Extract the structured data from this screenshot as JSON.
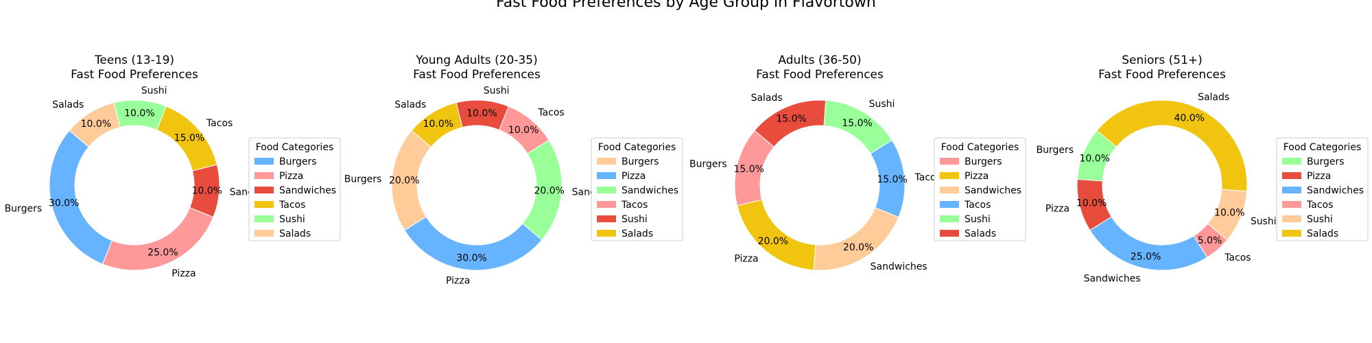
{
  "figure": {
    "title": "Fast Food Preferences by Age Group in Flavortown"
  },
  "colors": {
    "blue": "#66b3ff",
    "pink": "#ff9999",
    "red": "#e74c3c",
    "yellow": "#f1c40f",
    "green": "#99ff99",
    "peach": "#ffcc99"
  },
  "chart_data": [
    {
      "type": "pie",
      "variant": "donut",
      "title": "Teens (13-19)",
      "subtitle": "Fast Food Preferences",
      "legend_title": "Food Categories",
      "legend_position": "right",
      "start_angle_deg": 140,
      "slices": [
        {
          "label": "Burgers",
          "value": 30,
          "pct_label": "30.0%",
          "color": "#66b3ff"
        },
        {
          "label": "Pizza",
          "value": 25,
          "pct_label": "25.0%",
          "color": "#ff9999"
        },
        {
          "label": "Sandwiches",
          "value": 10,
          "pct_label": "10.0%",
          "color": "#e74c3c"
        },
        {
          "label": "Tacos",
          "value": 15,
          "pct_label": "15.0%",
          "color": "#f1c40f"
        },
        {
          "label": "Sushi",
          "value": 10,
          "pct_label": "10.0%",
          "color": "#99ff99"
        },
        {
          "label": "Salads",
          "value": 10,
          "pct_label": "10.0%",
          "color": "#ffcc99"
        }
      ]
    },
    {
      "type": "pie",
      "variant": "donut",
      "title": "Young Adults (20-35)",
      "subtitle": "Fast Food Preferences",
      "legend_title": "Food Categories",
      "legend_position": "right",
      "start_angle_deg": 140,
      "slices": [
        {
          "label": "Burgers",
          "value": 20,
          "pct_label": "20.0%",
          "color": "#ffcc99"
        },
        {
          "label": "Pizza",
          "value": 30,
          "pct_label": "30.0%",
          "color": "#66b3ff"
        },
        {
          "label": "Sandwiches",
          "value": 20,
          "pct_label": "20.0%",
          "color": "#99ff99"
        },
        {
          "label": "Tacos",
          "value": 10,
          "pct_label": "10.0%",
          "color": "#ff9999"
        },
        {
          "label": "Sushi",
          "value": 10,
          "pct_label": "10.0%",
          "color": "#e74c3c"
        },
        {
          "label": "Salads",
          "value": 10,
          "pct_label": "10.0%",
          "color": "#f1c40f"
        }
      ]
    },
    {
      "type": "pie",
      "variant": "donut",
      "title": "Adults (36-50)",
      "subtitle": "Fast Food Preferences",
      "legend_title": "Food Categories",
      "legend_position": "right",
      "start_angle_deg": 140,
      "slices": [
        {
          "label": "Burgers",
          "value": 15,
          "pct_label": "15.0%",
          "color": "#ff9999"
        },
        {
          "label": "Pizza",
          "value": 20,
          "pct_label": "20.0%",
          "color": "#f1c40f"
        },
        {
          "label": "Sandwiches",
          "value": 20,
          "pct_label": "20.0%",
          "color": "#ffcc99"
        },
        {
          "label": "Tacos",
          "value": 15,
          "pct_label": "15.0%",
          "color": "#66b3ff"
        },
        {
          "label": "Sushi",
          "value": 15,
          "pct_label": "15.0%",
          "color": "#99ff99"
        },
        {
          "label": "Salads",
          "value": 15,
          "pct_label": "15.0%",
          "color": "#e74c3c"
        }
      ]
    },
    {
      "type": "pie",
      "variant": "donut",
      "title": "Seniors (51+)",
      "subtitle": "Fast Food Preferences",
      "legend_title": "Food Categories",
      "legend_position": "right",
      "start_angle_deg": 140,
      "slices": [
        {
          "label": "Burgers",
          "value": 10,
          "pct_label": "10.0%",
          "color": "#99ff99"
        },
        {
          "label": "Pizza",
          "value": 10,
          "pct_label": "10.0%",
          "color": "#e74c3c"
        },
        {
          "label": "Sandwiches",
          "value": 25,
          "pct_label": "25.0%",
          "color": "#66b3ff"
        },
        {
          "label": "Tacos",
          "value": 5,
          "pct_label": "5.0%",
          "color": "#ff9999"
        },
        {
          "label": "Sushi",
          "value": 10,
          "pct_label": "10.0%",
          "color": "#ffcc99"
        },
        {
          "label": "Salads",
          "value": 40,
          "pct_label": "40.0%",
          "color": "#f1c40f"
        }
      ]
    }
  ]
}
